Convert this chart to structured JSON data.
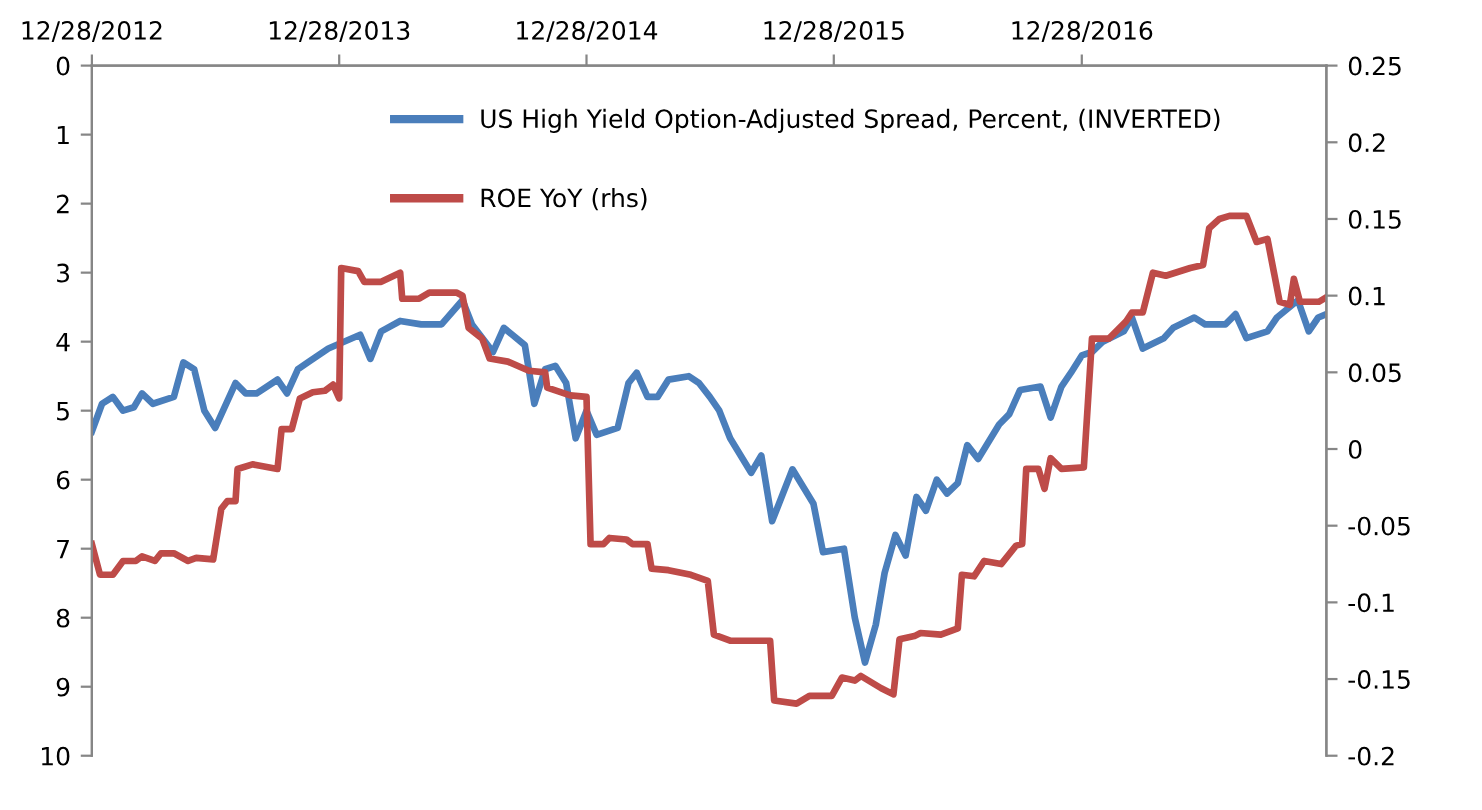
{
  "chart_data": {
    "type": "line",
    "xlim": [
      "2012-12-28",
      "2017-12-24"
    ],
    "xticks": [
      {
        "value": "2012-12-28",
        "label": "12/28/2012"
      },
      {
        "value": "2013-12-28",
        "label": "12/28/2013"
      },
      {
        "value": "2014-12-28",
        "label": "12/28/2014"
      },
      {
        "value": "2015-12-28",
        "label": "12/28/2015"
      },
      {
        "value": "2016-12-28",
        "label": "12/28/2016"
      }
    ],
    "ylim": [
      10,
      0
    ],
    "yticks": [
      0,
      1,
      2,
      3,
      4,
      5,
      6,
      7,
      8,
      9,
      10
    ],
    "y2lim": [
      -0.2,
      0.25
    ],
    "y2ticks": [
      -0.2,
      -0.15,
      -0.1,
      -0.05,
      0,
      0.05,
      0.1,
      0.15,
      0.2,
      0.25
    ],
    "grid": false,
    "legend": "top",
    "marker": "none",
    "line_style": "solid",
    "series": [
      {
        "name": "US High Yield Option-Adjusted Spread, Percent, (INVERTED)",
        "color": "#4a7ebb",
        "axis": "y",
        "x": [
          "2012-12-28",
          "2013-01-12",
          "2013-01-28",
          "2013-02-12",
          "2013-02-28",
          "2013-03-12",
          "2013-03-28",
          "2013-04-28",
          "2013-05-12",
          "2013-05-28",
          "2013-06-12",
          "2013-06-28",
          "2013-07-28",
          "2013-08-12",
          "2013-08-28",
          "2013-09-28",
          "2013-10-12",
          "2013-10-28",
          "2013-11-12",
          "2013-12-12",
          "2014-01-28",
          "2014-02-12",
          "2014-02-28",
          "2014-03-28",
          "2014-04-28",
          "2014-05-28",
          "2014-06-28",
          "2014-07-12",
          "2014-08-12",
          "2014-08-28",
          "2014-09-28",
          "2014-10-12",
          "2014-10-28",
          "2014-11-12",
          "2014-11-28",
          "2014-12-12",
          "2014-12-28",
          "2015-01-12",
          "2015-02-12",
          "2015-02-28",
          "2015-03-12",
          "2015-03-28",
          "2015-04-12",
          "2015-04-28",
          "2015-05-28",
          "2015-06-12",
          "2015-06-28",
          "2015-07-12",
          "2015-07-28",
          "2015-08-28",
          "2015-09-12",
          "2015-09-28",
          "2015-10-28",
          "2015-11-28",
          "2015-12-12",
          "2016-01-12",
          "2016-01-28",
          "2016-02-12",
          "2016-02-28",
          "2016-03-12",
          "2016-03-28",
          "2016-04-12",
          "2016-04-28",
          "2016-05-12",
          "2016-05-28",
          "2016-06-12",
          "2016-06-28",
          "2016-07-12",
          "2016-07-28",
          "2016-08-28",
          "2016-09-12",
          "2016-09-28",
          "2016-10-28",
          "2016-11-12",
          "2016-11-28",
          "2016-12-12",
          "2016-12-28",
          "2017-01-12",
          "2017-01-28",
          "2017-02-28",
          "2017-03-12",
          "2017-03-28",
          "2017-04-28",
          "2017-05-12",
          "2017-06-12",
          "2017-06-28",
          "2017-07-28",
          "2017-08-12",
          "2017-08-28",
          "2017-09-28",
          "2017-10-12",
          "2017-11-12",
          "2017-11-28",
          "2017-12-12",
          "2017-12-24"
        ],
        "values": [
          5.3,
          4.9,
          4.8,
          5.0,
          4.95,
          4.75,
          4.9,
          4.8,
          4.3,
          4.4,
          5.0,
          5.25,
          4.6,
          4.75,
          4.75,
          4.55,
          4.75,
          4.4,
          4.3,
          4.1,
          3.9,
          4.25,
          3.85,
          3.7,
          3.75,
          3.75,
          3.4,
          3.75,
          4.15,
          3.8,
          4.05,
          4.9,
          4.4,
          4.35,
          4.6,
          5.4,
          5.0,
          5.35,
          5.25,
          4.6,
          4.45,
          4.8,
          4.8,
          4.55,
          4.5,
          4.6,
          4.8,
          5.0,
          5.4,
          5.9,
          5.65,
          6.6,
          5.85,
          6.35,
          7.05,
          7.0,
          8.0,
          8.65,
          8.1,
          7.35,
          6.8,
          7.1,
          6.25,
          6.45,
          6.0,
          6.2,
          6.05,
          5.5,
          5.7,
          5.2,
          5.05,
          4.7,
          4.65,
          5.1,
          4.65,
          4.45,
          4.2,
          4.15,
          4.0,
          3.85,
          3.65,
          4.1,
          3.95,
          3.8,
          3.65,
          3.75,
          3.75,
          3.6,
          3.95,
          3.85,
          3.65,
          3.4,
          3.85,
          3.65,
          3.6
        ]
      },
      {
        "name": "ROE YoY (rhs)",
        "color": "#be4b48",
        "axis": "y2",
        "x": [
          "2012-12-28",
          "2013-01-09",
          "2013-01-28",
          "2013-02-12",
          "2013-03-03",
          "2013-03-12",
          "2013-03-31",
          "2013-04-09",
          "2013-04-28",
          "2013-05-19",
          "2013-05-31",
          "2013-06-25",
          "2013-07-07",
          "2013-07-16",
          "2013-07-28",
          "2013-07-31",
          "2013-08-22",
          "2013-09-28",
          "2013-10-04",
          "2013-10-19",
          "2013-10-31",
          "2013-11-19",
          "2013-12-07",
          "2013-12-19",
          "2013-12-28",
          "2013-12-31",
          "2014-01-25",
          "2014-02-03",
          "2014-02-28",
          "2014-03-28",
          "2014-03-31",
          "2014-04-25",
          "2014-05-10",
          "2014-06-19",
          "2014-06-28",
          "2014-07-07",
          "2014-07-27",
          "2014-08-07",
          "2014-09-03",
          "2014-10-04",
          "2014-10-28",
          "2014-10-31",
          "2014-12-04",
          "2014-12-28",
          "2015-01-03",
          "2015-01-22",
          "2015-01-31",
          "2015-02-25",
          "2015-03-06",
          "2015-03-28",
          "2015-04-03",
          "2015-04-28",
          "2015-05-31",
          "2015-06-25",
          "2015-07-04",
          "2015-07-28",
          "2015-09-25",
          "2015-10-01",
          "2015-11-03",
          "2015-11-22",
          "2015-12-25",
          "2016-01-09",
          "2016-01-28",
          "2016-02-06",
          "2016-03-07",
          "2016-03-25",
          "2016-04-03",
          "2016-04-25",
          "2016-05-04",
          "2016-06-03",
          "2016-06-28",
          "2016-07-04",
          "2016-07-22",
          "2016-08-06",
          "2016-08-31",
          "2016-09-22",
          "2016-10-01",
          "2016-10-07",
          "2016-10-25",
          "2016-11-03",
          "2016-11-12",
          "2016-11-28",
          "2016-12-31",
          "2017-01-12",
          "2017-02-06",
          "2017-03-03",
          "2017-03-12",
          "2017-03-28",
          "2017-04-12",
          "2017-05-01",
          "2017-06-06",
          "2017-06-25",
          "2017-07-04",
          "2017-07-19",
          "2017-08-03",
          "2017-08-28",
          "2017-09-12",
          "2017-09-28",
          "2017-10-16",
          "2017-10-31",
          "2017-11-06",
          "2017-11-15",
          "2017-12-13",
          "2017-12-24"
        ],
        "values": [
          -0.062,
          -0.082,
          -0.082,
          -0.073,
          -0.073,
          -0.07,
          -0.073,
          -0.068,
          -0.068,
          -0.073,
          -0.071,
          -0.072,
          -0.039,
          -0.034,
          -0.034,
          -0.013,
          -0.01,
          -0.013,
          0.013,
          0.013,
          0.033,
          0.037,
          0.038,
          0.042,
          0.033,
          0.118,
          0.116,
          0.109,
          0.109,
          0.115,
          0.098,
          0.098,
          0.102,
          0.102,
          0.1,
          0.079,
          0.072,
          0.059,
          0.057,
          0.051,
          0.05,
          0.04,
          0.035,
          0.034,
          -0.062,
          -0.062,
          -0.058,
          -0.059,
          -0.062,
          -0.062,
          -0.078,
          -0.079,
          -0.082,
          -0.086,
          -0.121,
          -0.125,
          -0.125,
          -0.164,
          -0.166,
          -0.161,
          -0.161,
          -0.149,
          -0.151,
          -0.148,
          -0.156,
          -0.16,
          -0.124,
          -0.122,
          -0.12,
          -0.121,
          -0.117,
          -0.082,
          -0.083,
          -0.073,
          -0.075,
          -0.063,
          -0.062,
          -0.013,
          -0.013,
          -0.026,
          -0.006,
          -0.013,
          -0.012,
          0.072,
          0.072,
          0.083,
          0.089,
          0.089,
          0.115,
          0.113,
          0.118,
          0.12,
          0.144,
          0.15,
          0.152,
          0.152,
          0.135,
          0.137,
          0.096,
          0.094,
          0.111,
          0.096,
          0.096,
          0.099
        ]
      }
    ]
  }
}
